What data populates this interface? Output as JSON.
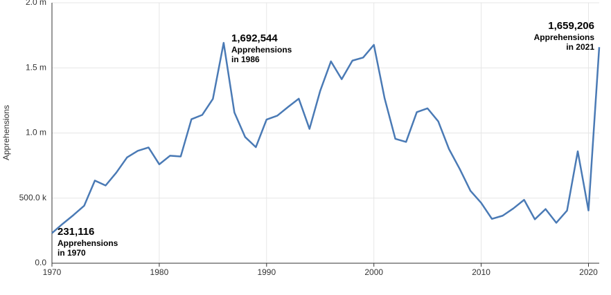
{
  "chart_data": {
    "type": "line",
    "y_label": "Apprehensions",
    "x": [
      1970,
      1971,
      1972,
      1973,
      1974,
      1975,
      1976,
      1977,
      1978,
      1979,
      1980,
      1981,
      1982,
      1983,
      1984,
      1985,
      1986,
      1987,
      1988,
      1989,
      1990,
      1991,
      1992,
      1993,
      1994,
      1995,
      1996,
      1997,
      1998,
      1999,
      2000,
      2001,
      2002,
      2003,
      2004,
      2005,
      2006,
      2007,
      2008,
      2009,
      2010,
      2011,
      2012,
      2013,
      2014,
      2015,
      2016,
      2017,
      2018,
      2019,
      2020,
      2021
    ],
    "series": [
      {
        "color": "#4a7ab5",
        "values": [
          231116,
          302517,
          369495,
          441066,
          634777,
          596796,
          696039,
          812541,
          862837,
          888729,
          759420,
          825290,
          819919,
          1105670,
          1138566,
          1262435,
          1692544,
          1158030,
          969214,
          891147,
          1103353,
          1132933,
          1199560,
          1263490,
          1031668,
          1324202,
          1549876,
          1412953,
          1555776,
          1579010,
          1676438,
          1266214,
          955310,
          931557,
          1160395,
          1189075,
          1089092,
          876704,
          723825,
          556041,
          463382,
          340252,
          364768,
          420789,
          486651,
          337117,
          415816,
          310531,
          404142,
          859501,
          405036,
          1659206
        ]
      }
    ],
    "xlim": [
      1970,
      2021
    ],
    "xticks": [
      1970,
      1980,
      1990,
      2000,
      2010,
      2020
    ],
    "ylim": [
      0,
      2000000
    ],
    "yticks": [
      {
        "value": 0,
        "label": "0.0"
      },
      {
        "value": 500000,
        "label": "500.0 k"
      },
      {
        "value": 1000000,
        "label": "1.0 m"
      },
      {
        "value": 1500000,
        "label": "1.5 m"
      },
      {
        "value": 2000000,
        "label": "2.0 m"
      }
    ],
    "grid": true,
    "annotations": [
      {
        "value": "231,116",
        "lines": [
          "Apprehensions",
          "in 1970"
        ]
      },
      {
        "value": "1,692,544",
        "lines": [
          "Apprehensions",
          "in 1986"
        ]
      },
      {
        "value": "1,659,206",
        "lines": [
          "Apprehensions",
          "in 2021"
        ]
      }
    ]
  }
}
